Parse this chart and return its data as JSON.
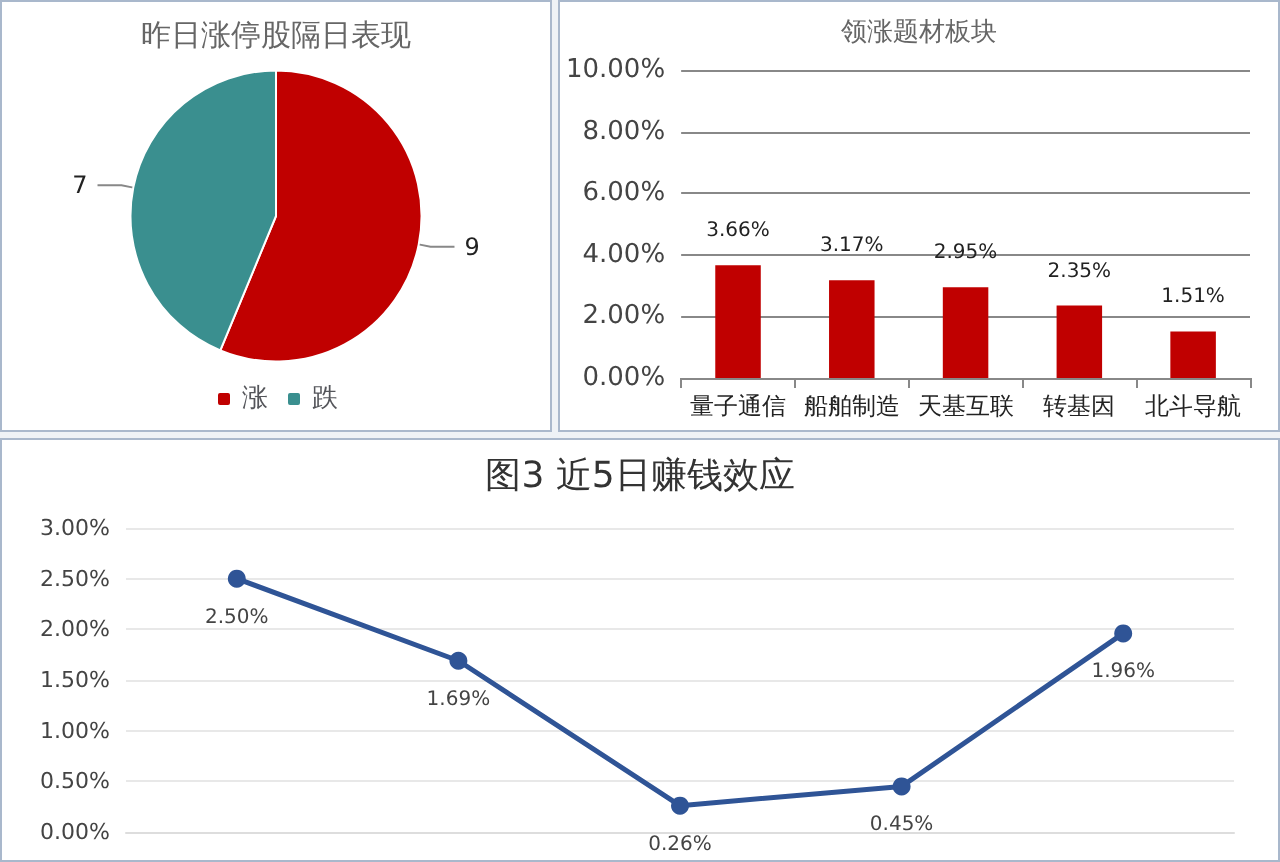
{
  "chart_data": [
    {
      "type": "pie",
      "title": "昨日涨停股隔日表现",
      "categories": [
        "涨",
        "跌"
      ],
      "values": [
        9,
        7
      ],
      "colors": [
        "#c00000",
        "#3a8f8f"
      ],
      "data_labels": true,
      "legend": "bottom"
    },
    {
      "type": "bar",
      "title": "领涨题材板块",
      "categories": [
        "量子通信",
        "船舶制造",
        "天基互联",
        "转基因",
        "北斗导航"
      ],
      "values": [
        3.66,
        3.17,
        2.95,
        2.35,
        1.51
      ],
      "color": "#c00000",
      "value_labels": [
        "3.66%",
        "3.17%",
        "2.95%",
        "2.35%",
        "1.51%"
      ],
      "ylim": [
        0,
        10
      ],
      "yticks": [
        {
          "value": 0,
          "label": "0.00%"
        },
        {
          "value": 2,
          "label": "2.00%"
        },
        {
          "value": 4,
          "label": "4.00%"
        },
        {
          "value": 6,
          "label": "6.00%"
        },
        {
          "value": 8,
          "label": "8.00%"
        },
        {
          "value": 10,
          "label": "10.00%"
        }
      ],
      "grid": "y"
    },
    {
      "type": "line",
      "title": "图3 近5日赚钱效应",
      "categories": [
        null,
        null,
        null,
        null,
        null
      ],
      "values": [
        2.5,
        1.69,
        0.26,
        0.45,
        1.96
      ],
      "color": "#2f5496",
      "value_labels": [
        "2.50%",
        "1.69%",
        "0.26%",
        "0.45%",
        "1.96%"
      ],
      "ylim": [
        0,
        3
      ],
      "yticks": [
        {
          "value": 0,
          "label": "0.00%"
        },
        {
          "value": 0.5,
          "label": "0.50%"
        },
        {
          "value": 1,
          "label": "1.00%"
        },
        {
          "value": 1.5,
          "label": "1.50%"
        },
        {
          "value": 2,
          "label": "2.00%"
        },
        {
          "value": 2.5,
          "label": "2.50%"
        },
        {
          "value": 3,
          "label": "3.00%"
        }
      ],
      "grid": "y",
      "marker": "circle"
    }
  ]
}
